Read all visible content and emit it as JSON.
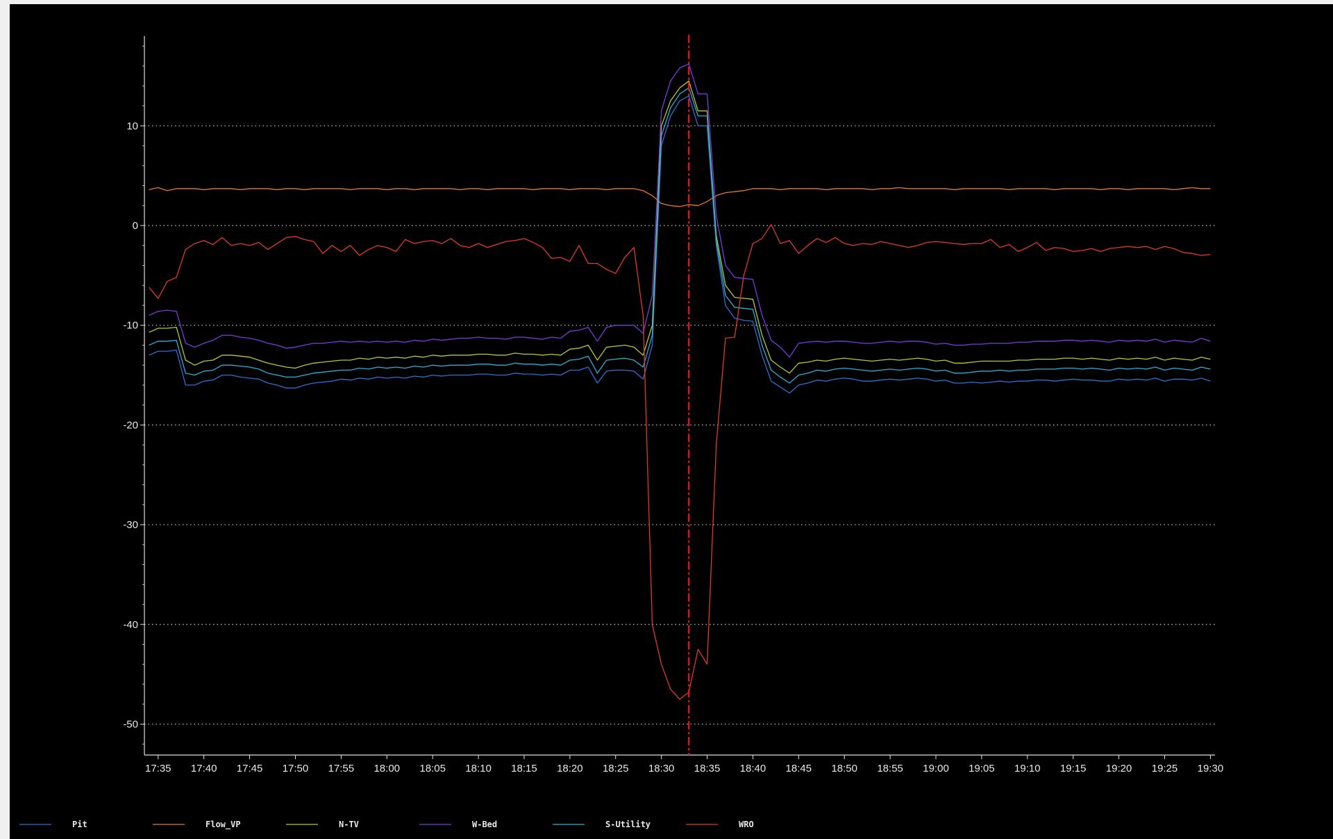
{
  "chart_data": {
    "type": "line",
    "xlabel": "",
    "ylabel": "",
    "title": "",
    "ylim": [
      -53.1,
      19
    ],
    "yticks": [
      10,
      0,
      -10,
      -20,
      -30,
      -40,
      -50
    ],
    "yminor_step": 2,
    "grid": "horizontal dotted",
    "xlim_minutes": [
      1053.5,
      1170.5
    ],
    "x_tick_labels": [
      "17:35",
      "17:40",
      "17:45",
      "17:50",
      "17:55",
      "18:00",
      "18:05",
      "18:10",
      "18:15",
      "18:20",
      "18:25",
      "18:30",
      "18:35",
      "18:40",
      "18:45",
      "18:50",
      "18:55",
      "19:00",
      "19:05",
      "19:10",
      "19:15",
      "19:20",
      "19:25",
      "19:30"
    ],
    "cursor_time": "18:33",
    "cursor_color": "#e8141e",
    "x": [
      "17:34",
      "17:35",
      "17:36",
      "17:37",
      "17:38",
      "17:39",
      "17:40",
      "17:41",
      "17:42",
      "17:43",
      "17:44",
      "17:45",
      "17:46",
      "17:47",
      "17:48",
      "17:49",
      "17:50",
      "17:51",
      "17:52",
      "17:53",
      "17:54",
      "17:55",
      "17:56",
      "17:57",
      "17:58",
      "17:59",
      "18:00",
      "18:01",
      "18:02",
      "18:03",
      "18:04",
      "18:05",
      "18:06",
      "18:07",
      "18:08",
      "18:09",
      "18:10",
      "18:11",
      "18:12",
      "18:13",
      "18:14",
      "18:15",
      "18:16",
      "18:17",
      "18:18",
      "18:19",
      "18:20",
      "18:21",
      "18:22",
      "18:23",
      "18:24",
      "18:25",
      "18:26",
      "18:27",
      "18:28",
      "18:29",
      "18:30",
      "18:31",
      "18:32",
      "18:33",
      "18:34",
      "18:35",
      "18:36",
      "18:37",
      "18:38",
      "18:39",
      "18:40",
      "18:41",
      "18:42",
      "18:43",
      "18:44",
      "18:45",
      "18:46",
      "18:47",
      "18:48",
      "18:49",
      "18:50",
      "18:51",
      "18:52",
      "18:53",
      "18:54",
      "18:55",
      "18:56",
      "18:57",
      "18:58",
      "18:59",
      "19:00",
      "19:01",
      "19:02",
      "19:03",
      "19:04",
      "19:05",
      "19:06",
      "19:07",
      "19:08",
      "19:09",
      "19:10",
      "19:11",
      "19:12",
      "19:13",
      "19:14",
      "19:15",
      "19:16",
      "19:17",
      "19:18",
      "19:19",
      "19:20",
      "19:21",
      "19:22",
      "19:23",
      "19:24",
      "19:25",
      "19:26",
      "19:27",
      "19:28",
      "19:29",
      "19:30"
    ],
    "series": [
      {
        "name": "Pit",
        "color": "#2e6fd6",
        "values": [
          -13,
          -12.6,
          -12.6,
          -12.5,
          -16,
          -16,
          -15.6,
          -15.5,
          -15,
          -15,
          -15.2,
          -15.3,
          -15.4,
          -15.8,
          -16,
          -16.3,
          -16.3,
          -16,
          -15.8,
          -15.7,
          -15.6,
          -15.4,
          -15.5,
          -15.3,
          -15.4,
          -15.2,
          -15.3,
          -15.2,
          -15.3,
          -15.1,
          -15.2,
          -15,
          -15.1,
          -15,
          -15,
          -15,
          -14.9,
          -14.9,
          -15,
          -15,
          -14.8,
          -14.9,
          -14.9,
          -15,
          -14.9,
          -15,
          -14.5,
          -14.5,
          -14.2,
          -15.8,
          -14.6,
          -14.5,
          -14.5,
          -14.6,
          -15.4,
          -12,
          8,
          11,
          12.5,
          13,
          10,
          10,
          -2,
          -8,
          -9.3,
          -9.5,
          -9.6,
          -13,
          -15.6,
          -16.2,
          -16.8,
          -16,
          -15.8,
          -15.5,
          -15.6,
          -15.4,
          -15.3,
          -15.4,
          -15.6,
          -15.6,
          -15.5,
          -15.4,
          -15.5,
          -15.4,
          -15.3,
          -15.4,
          -15.6,
          -15.5,
          -15.8,
          -15.8,
          -15.7,
          -15.8,
          -15.7,
          -15.6,
          -15.7,
          -15.6,
          -15.6,
          -15.5,
          -15.5,
          -15.6,
          -15.5,
          -15.4,
          -15.5,
          -15.5,
          -15.6,
          -15.6,
          -15.4,
          -15.5,
          -15.4,
          -15.5,
          -15.3,
          -15.6,
          -15.4,
          -15.4,
          -15.5,
          -15.3,
          -15.6
        ]
      },
      {
        "name": "Flow_VP",
        "color": "#e8782a",
        "values": [
          3.6,
          3.8,
          3.5,
          3.7,
          3.7,
          3.7,
          3.6,
          3.7,
          3.7,
          3.7,
          3.6,
          3.7,
          3.7,
          3.7,
          3.6,
          3.7,
          3.7,
          3.6,
          3.7,
          3.7,
          3.7,
          3.7,
          3.6,
          3.7,
          3.7,
          3.7,
          3.6,
          3.7,
          3.7,
          3.6,
          3.7,
          3.7,
          3.7,
          3.7,
          3.6,
          3.7,
          3.7,
          3.6,
          3.7,
          3.7,
          3.7,
          3.7,
          3.6,
          3.7,
          3.7,
          3.7,
          3.6,
          3.7,
          3.7,
          3.7,
          3.6,
          3.7,
          3.7,
          3.7,
          3.5,
          3,
          2.2,
          2,
          1.9,
          2.1,
          2,
          2.4,
          3,
          3.3,
          3.4,
          3.5,
          3.7,
          3.7,
          3.7,
          3.6,
          3.7,
          3.7,
          3.7,
          3.7,
          3.6,
          3.7,
          3.7,
          3.7,
          3.7,
          3.6,
          3.7,
          3.7,
          3.8,
          3.7,
          3.7,
          3.7,
          3.7,
          3.7,
          3.6,
          3.7,
          3.7,
          3.7,
          3.7,
          3.7,
          3.6,
          3.7,
          3.7,
          3.7,
          3.7,
          3.6,
          3.7,
          3.7,
          3.7,
          3.7,
          3.6,
          3.7,
          3.7,
          3.6,
          3.7,
          3.7,
          3.7,
          3.7,
          3.6,
          3.7,
          3.8,
          3.7,
          3.7
        ]
      },
      {
        "name": "N-TV",
        "color": "#b8c92a",
        "values": [
          -10.7,
          -10.3,
          -10.3,
          -10.2,
          -13.5,
          -14,
          -13.6,
          -13.5,
          -13,
          -13,
          -13.1,
          -13.2,
          -13.5,
          -13.8,
          -14,
          -14.2,
          -14.3,
          -14,
          -13.8,
          -13.7,
          -13.6,
          -13.5,
          -13.5,
          -13.3,
          -13.4,
          -13.2,
          -13.3,
          -13.2,
          -13.3,
          -13.1,
          -13.2,
          -13,
          -13.1,
          -13,
          -13,
          -13,
          -12.9,
          -12.9,
          -13,
          -13,
          -12.8,
          -12.9,
          -12.9,
          -13,
          -12.9,
          -13,
          -12.4,
          -12.3,
          -12,
          -13.5,
          -12.2,
          -12.1,
          -12,
          -12.2,
          -13,
          -10,
          10,
          12.5,
          13.8,
          14.5,
          11.5,
          11.5,
          -1,
          -6,
          -7.2,
          -7.3,
          -7.4,
          -11,
          -13.5,
          -14.2,
          -14.8,
          -13.8,
          -13.7,
          -13.5,
          -13.6,
          -13.4,
          -13.3,
          -13.4,
          -13.5,
          -13.6,
          -13.5,
          -13.4,
          -13.5,
          -13.4,
          -13.3,
          -13.4,
          -13.6,
          -13.5,
          -13.8,
          -13.8,
          -13.7,
          -13.6,
          -13.6,
          -13.6,
          -13.6,
          -13.5,
          -13.5,
          -13.4,
          -13.4,
          -13.4,
          -13.3,
          -13.3,
          -13.4,
          -13.3,
          -13.4,
          -13.5,
          -13.3,
          -13.4,
          -13.3,
          -13.4,
          -13.2,
          -13.5,
          -13.3,
          -13.4,
          -13.5,
          -13.2,
          -13.4
        ]
      },
      {
        "name": "W-Bed",
        "color": "#7a3ae0",
        "values": [
          -9,
          -8.6,
          -8.5,
          -8.6,
          -11.8,
          -12.2,
          -11.8,
          -11.5,
          -11,
          -11,
          -11.2,
          -11.3,
          -11.5,
          -11.8,
          -12,
          -12.3,
          -12.2,
          -12,
          -11.8,
          -11.8,
          -11.7,
          -11.6,
          -11.7,
          -11.6,
          -11.7,
          -11.6,
          -11.7,
          -11.6,
          -11.7,
          -11.5,
          -11.6,
          -11.4,
          -11.5,
          -11.4,
          -11.3,
          -11.3,
          -11.2,
          -11.3,
          -11.3,
          -11.4,
          -11.2,
          -11.2,
          -11.3,
          -11.4,
          -11.2,
          -11.3,
          -10.6,
          -10.5,
          -10.2,
          -11.6,
          -10.2,
          -10,
          -10,
          -10,
          -10.8,
          -7,
          11.5,
          14.5,
          15.8,
          16.2,
          13.2,
          13.2,
          1,
          -4,
          -5.2,
          -5.3,
          -5.4,
          -9,
          -11.5,
          -12.2,
          -13.2,
          -11.8,
          -11.7,
          -11.6,
          -11.7,
          -11.6,
          -11.6,
          -11.7,
          -11.8,
          -11.8,
          -11.7,
          -11.6,
          -11.7,
          -11.6,
          -11.6,
          -11.7,
          -11.9,
          -11.8,
          -12,
          -12,
          -11.9,
          -11.9,
          -11.8,
          -11.8,
          -11.8,
          -11.7,
          -11.7,
          -11.6,
          -11.6,
          -11.6,
          -11.5,
          -11.5,
          -11.6,
          -11.5,
          -11.6,
          -11.7,
          -11.5,
          -11.6,
          -11.5,
          -11.6,
          -11.4,
          -11.7,
          -11.5,
          -11.6,
          -11.7,
          -11.3,
          -11.6
        ]
      },
      {
        "name": "S-Utility",
        "color": "#2ab0d6",
        "values": [
          -12,
          -11.6,
          -11.6,
          -11.5,
          -14.8,
          -15,
          -14.6,
          -14.5,
          -14,
          -14,
          -14.1,
          -14.2,
          -14.4,
          -14.8,
          -15,
          -15.2,
          -15.2,
          -15,
          -14.8,
          -14.7,
          -14.6,
          -14.5,
          -14.5,
          -14.3,
          -14.4,
          -14.2,
          -14.3,
          -14.2,
          -14.3,
          -14.1,
          -14.2,
          -14,
          -14.1,
          -14,
          -14,
          -14,
          -13.9,
          -13.9,
          -14,
          -14,
          -13.8,
          -13.9,
          -13.9,
          -14,
          -13.9,
          -14,
          -13.5,
          -13.4,
          -13.1,
          -14.8,
          -13.5,
          -13.4,
          -13.3,
          -13.5,
          -14.2,
          -11,
          9,
          11.8,
          13.2,
          13.8,
          11,
          11,
          -1.5,
          -7,
          -8.2,
          -8.3,
          -8.4,
          -12,
          -14.5,
          -15.2,
          -15.8,
          -15,
          -14.8,
          -14.5,
          -14.6,
          -14.4,
          -14.3,
          -14.4,
          -14.5,
          -14.6,
          -14.5,
          -14.4,
          -14.5,
          -14.4,
          -14.3,
          -14.4,
          -14.6,
          -14.5,
          -14.8,
          -14.8,
          -14.7,
          -14.6,
          -14.6,
          -14.5,
          -14.6,
          -14.5,
          -14.5,
          -14.4,
          -14.4,
          -14.4,
          -14.3,
          -14.3,
          -14.4,
          -14.3,
          -14.4,
          -14.5,
          -14.3,
          -14.4,
          -14.3,
          -14.4,
          -14.2,
          -14.5,
          -14.3,
          -14.4,
          -14.5,
          -14.2,
          -14.4
        ]
      },
      {
        "name": "WRO",
        "color": "#e03a2a",
        "values": [
          -6.2,
          -7.3,
          -5.6,
          -5.2,
          -2.4,
          -1.8,
          -1.5,
          -1.9,
          -1.2,
          -2,
          -1.8,
          -2,
          -1.7,
          -2.4,
          -1.8,
          -1.2,
          -1.1,
          -1.4,
          -1.6,
          -2.8,
          -2,
          -2.6,
          -2,
          -3,
          -2.4,
          -2,
          -2.2,
          -2.6,
          -1.4,
          -1.8,
          -1.6,
          -1.5,
          -1.8,
          -1.3,
          -2,
          -2.2,
          -1.8,
          -2.2,
          -1.9,
          -1.6,
          -1.5,
          -1.3,
          -1.7,
          -2.2,
          -3.3,
          -3.2,
          -3.6,
          -2,
          -3.8,
          -3.8,
          -4.4,
          -4.8,
          -3.2,
          -2.2,
          -9,
          -40,
          -44,
          -46.5,
          -47.5,
          -46.8,
          -42.5,
          -44,
          -22,
          -11.3,
          -11.2,
          -5,
          -1.8,
          -1.3,
          0.1,
          -1.8,
          -1.5,
          -2.8,
          -2,
          -1.3,
          -1.7,
          -1.2,
          -1.8,
          -2,
          -1.8,
          -1.9,
          -1.6,
          -1.8,
          -2,
          -2.2,
          -2,
          -1.7,
          -1.6,
          -1.7,
          -1.8,
          -1.9,
          -1.8,
          -1.8,
          -1.4,
          -2.2,
          -1.9,
          -2.6,
          -2.2,
          -1.7,
          -2.5,
          -2.2,
          -2.3,
          -2.6,
          -2.5,
          -2.3,
          -2.6,
          -2.3,
          -2.2,
          -2.1,
          -2.2,
          -2.1,
          -2.4,
          -2.1,
          -2.3,
          -2.7,
          -2.8,
          -3,
          -2.9
        ]
      }
    ]
  }
}
